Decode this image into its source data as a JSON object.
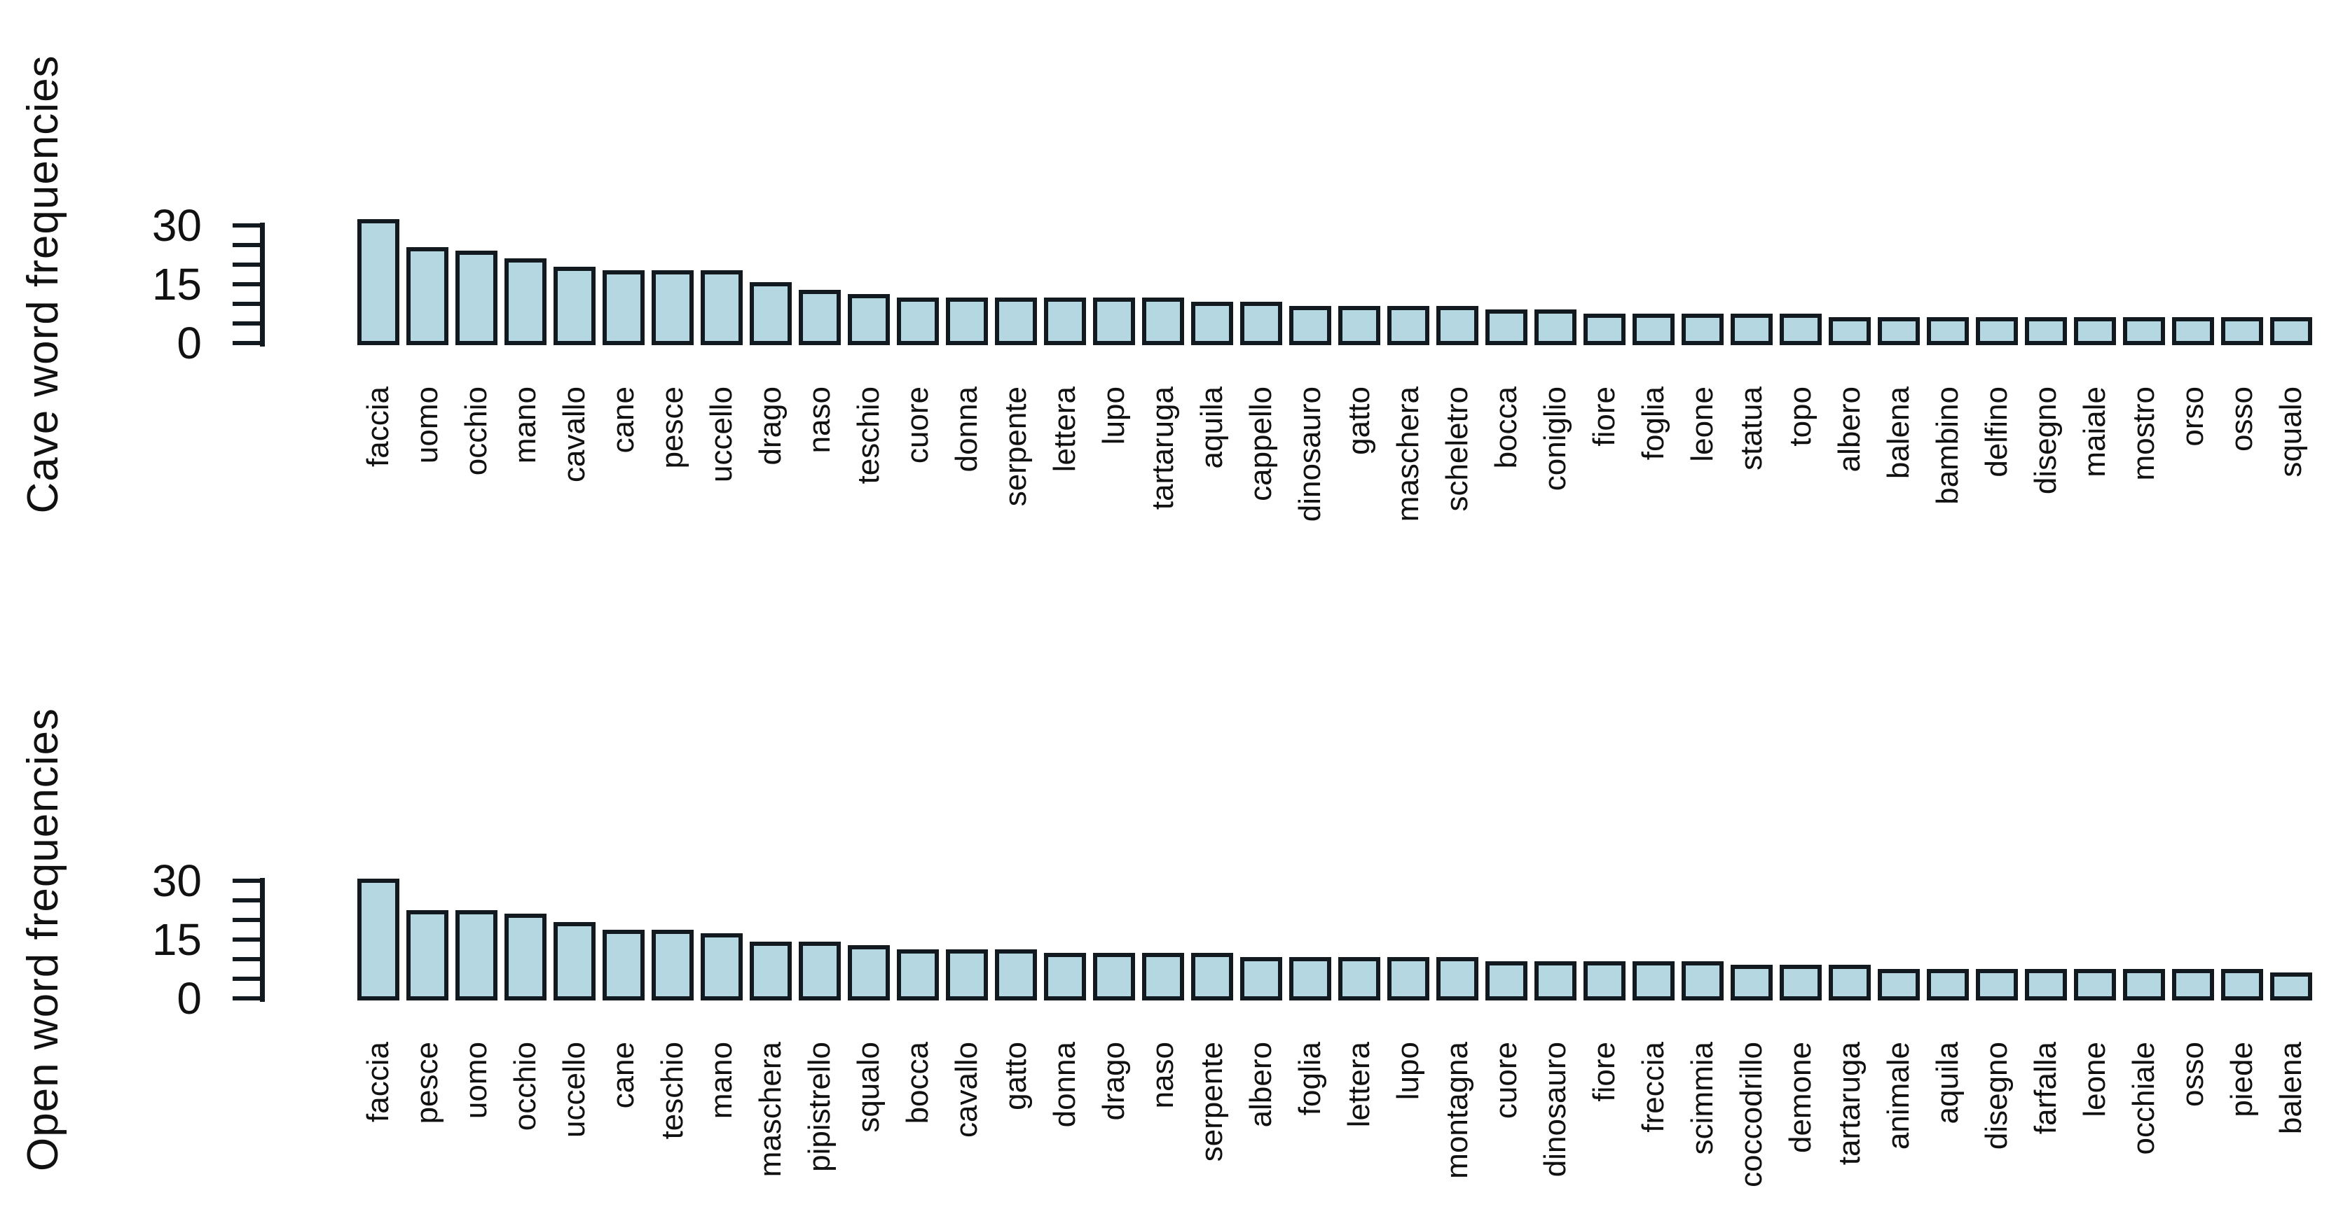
{
  "figure": {
    "background": "#ffffff",
    "text_color": "#111111",
    "bar_fill": "#b5d7e2",
    "bar_border": "#12191f"
  },
  "chart_data": [
    {
      "type": "bar",
      "title": "",
      "ylabel": "Cave word frequencies",
      "xlabel": "",
      "ylim": [
        0,
        32
      ],
      "grid": false,
      "legend_position": "none",
      "y_tick_values": [
        0,
        5,
        10,
        15,
        20,
        25,
        30
      ],
      "y_tick_labels": [
        {
          "value": 0,
          "label": "0"
        },
        {
          "value": 15,
          "label": "15"
        },
        {
          "value": 30,
          "label": "30"
        }
      ],
      "categories": [
        "faccia",
        "uomo",
        "occhio",
        "mano",
        "cavallo",
        "cane",
        "pesce",
        "uccello",
        "drago",
        "naso",
        "teschio",
        "cuore",
        "donna",
        "serpente",
        "lettera",
        "lupo",
        "tartaruga",
        "aquila",
        "cappello",
        "dinosauro",
        "gatto",
        "maschera",
        "scheletro",
        "bocca",
        "coniglio",
        "fiore",
        "foglia",
        "leone",
        "statua",
        "topo",
        "albero",
        "balena",
        "bambino",
        "delfino",
        "disegno",
        "maiale",
        "mostro",
        "orso",
        "osso",
        "squalo"
      ],
      "values": [
        31,
        24,
        23,
        21,
        19,
        18,
        18,
        18,
        15,
        13,
        12,
        11,
        11,
        11,
        11,
        11,
        11,
        10,
        10,
        9,
        9,
        9,
        9,
        8,
        8,
        7,
        7,
        7,
        7,
        7,
        6,
        6,
        6,
        6,
        6,
        6,
        6,
        6,
        6,
        6
      ]
    },
    {
      "type": "bar",
      "title": "",
      "ylabel": "Open word frequencies",
      "xlabel": "",
      "ylim": [
        0,
        32
      ],
      "grid": false,
      "legend_position": "none",
      "y_tick_values": [
        0,
        5,
        10,
        15,
        20,
        25,
        30
      ],
      "y_tick_labels": [
        {
          "value": 0,
          "label": "0"
        },
        {
          "value": 15,
          "label": "15"
        },
        {
          "value": 30,
          "label": "30"
        }
      ],
      "categories": [
        "faccia",
        "pesce",
        "uomo",
        "occhio",
        "uccello",
        "cane",
        "teschio",
        "mano",
        "maschera",
        "pipistrello",
        "squalo",
        "bocca",
        "cavallo",
        "gatto",
        "donna",
        "drago",
        "naso",
        "serpente",
        "albero",
        "foglia",
        "lettera",
        "lupo",
        "montagna",
        "cuore",
        "dinosauro",
        "fiore",
        "freccia",
        "scimmia",
        "coccodrillo",
        "demone",
        "tartaruga",
        "animale",
        "aquila",
        "disegno",
        "farfalla",
        "leone",
        "occhiale",
        "osso",
        "piede",
        "balena"
      ],
      "values": [
        30,
        22,
        22,
        21,
        19,
        17,
        17,
        16,
        14,
        14,
        13,
        12,
        12,
        12,
        11,
        11,
        11,
        11,
        10,
        10,
        10,
        10,
        10,
        9,
        9,
        9,
        9,
        9,
        8,
        8,
        8,
        7,
        7,
        7,
        7,
        7,
        7,
        7,
        7,
        6
      ]
    }
  ]
}
